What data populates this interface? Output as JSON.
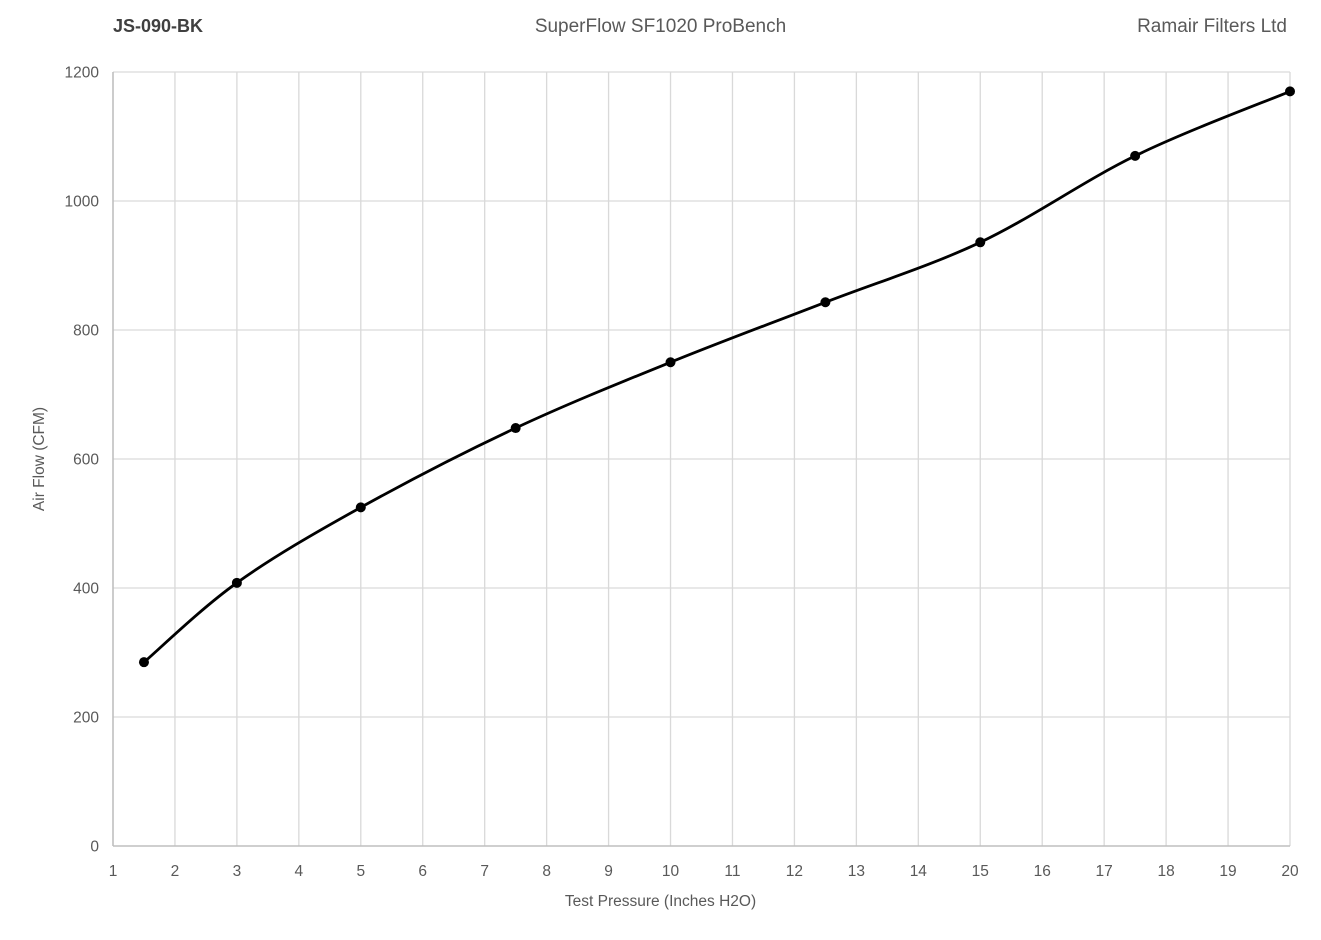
{
  "header": {
    "left_title": "JS-090-BK",
    "center_title": "SuperFlow SF1020 ProBench",
    "right_title": "Ramair Filters Ltd"
  },
  "chart_data": {
    "type": "line",
    "title": "SuperFlow SF1020 ProBench",
    "series": [
      {
        "name": "JS-090-BK",
        "x": [
          1.5,
          3,
          5,
          7.5,
          10,
          12.5,
          15,
          17.5,
          20
        ],
        "y": [
          285,
          408,
          525,
          648,
          750,
          843,
          936,
          1070,
          1170
        ]
      }
    ],
    "xlabel": "Test Pressure (Inches H2O)",
    "ylabel": "Air Flow (CFM)",
    "xlim": [
      1,
      20
    ],
    "ylim": [
      0,
      1200
    ],
    "x_ticks": [
      1,
      2,
      3,
      4,
      5,
      6,
      7,
      8,
      9,
      10,
      11,
      12,
      13,
      14,
      15,
      16,
      17,
      18,
      19,
      20
    ],
    "y_ticks": [
      0,
      200,
      400,
      600,
      800,
      1000,
      1200
    ],
    "grid": true,
    "legend": false,
    "line_smooth": true,
    "marker": "circle",
    "marker_radius": 5,
    "line_width": 2.8,
    "line_color": "#000000",
    "marker_color": "#000000",
    "gridline_color": "#d9d9d9",
    "axis_color": "#bfbfbf",
    "tick_text_color": "#595959",
    "tick_font_size": 15.5
  }
}
